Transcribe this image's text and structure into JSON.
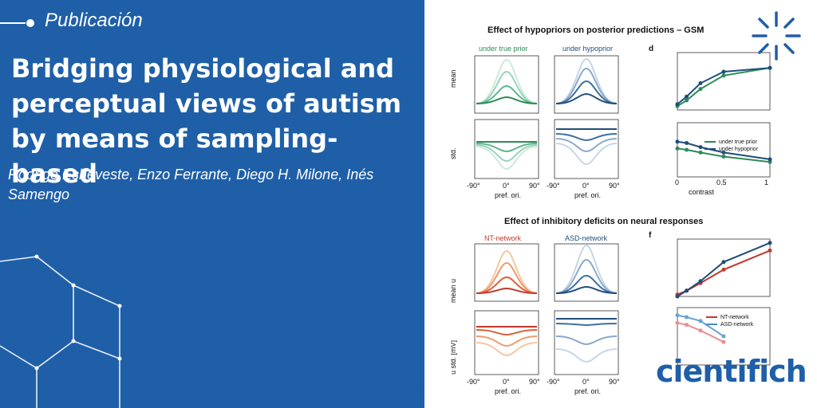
{
  "tag": {
    "label": "Publicación"
  },
  "title": "Bridging physiological and perceptual views of autism by means of sampling-based",
  "authors": "Rodrigo Echeveste, Enzo Ferrante, Diego H. Milone, Inés Samengo",
  "brand": "cientifich",
  "colors": {
    "brand_blue": "#1f5fa8",
    "green": "#2e8b57",
    "blue": "#1f4e79",
    "red": "#c0392b"
  },
  "figure": {
    "top_title": "Effect of hypopriors on posterior predictions – GSM",
    "bottom_title": "Effect of inhibitory deficits on neural responses",
    "panel_a_title": "under true prior",
    "panel_b_title": "under hypoprior",
    "panel_e1_title": "NT-network",
    "panel_e2_title": "ASD-network",
    "letter_d": "d",
    "letter_f": "f",
    "ylabel_mean": "mean",
    "ylabel_std": "std.",
    "ylabel_mean_u": "mean u",
    "ylabel_std_u": "u std. [mV]",
    "xlabel_pref": "pref. ori.",
    "xlabel_contrast": "contrast",
    "xticks": [
      "-90°",
      "0°",
      "90°"
    ],
    "contrast_ticks": [
      "0",
      "0.5",
      "1"
    ],
    "legend_d": [
      "under true prior",
      "under hypoprior"
    ],
    "legend_f": [
      "NT-network",
      "ASD-network"
    ]
  },
  "chart_data": [
    {
      "type": "line",
      "title": "Effect of hypopriors on posterior predictions – GSM",
      "xlabel": "contrast",
      "ylabel": "mean",
      "x": [
        0,
        0.1,
        0.25,
        0.5,
        1
      ],
      "ylim": [
        3,
        6
      ],
      "series": [
        {
          "name": "under true prior",
          "values": [
            3.2,
            3.5,
            4.1,
            4.8,
            5.2
          ]
        },
        {
          "name": "under hypoprior",
          "values": [
            3.3,
            3.7,
            4.4,
            5.0,
            5.2
          ]
        }
      ]
    },
    {
      "type": "line",
      "xlabel": "contrast",
      "ylabel": "std.",
      "x": [
        0,
        0.1,
        0.25,
        0.5,
        1
      ],
      "ylim": [
        0,
        4
      ],
      "series": [
        {
          "name": "under true prior",
          "values": [
            2.1,
            2.0,
            1.8,
            1.5,
            1.1
          ]
        },
        {
          "name": "under hypoprior",
          "values": [
            2.6,
            2.5,
            2.2,
            1.8,
            1.3
          ]
        }
      ]
    },
    {
      "type": "line",
      "title": "Effect of inhibitory deficits on neural responses",
      "ylabel": "mean u [mV]",
      "x": [
        0,
        0.1,
        0.25,
        0.5,
        1
      ],
      "ylim": [
        3,
        6
      ],
      "series": [
        {
          "name": "NT-network",
          "values": [
            3.1,
            3.3,
            3.7,
            4.4,
            5.4
          ]
        },
        {
          "name": "ASD-network",
          "values": [
            3.0,
            3.3,
            3.8,
            4.8,
            5.8
          ]
        }
      ]
    },
    {
      "type": "line",
      "ylabel": "u std. [mV]",
      "x": [
        0,
        0.1,
        0.25,
        0.5
      ],
      "ylim": [
        0,
        3
      ],
      "series": [
        {
          "name": "NT-network",
          "values": [
            2.2,
            2.1,
            1.8,
            1.2
          ]
        },
        {
          "name": "ASD-network",
          "values": [
            2.6,
            2.5,
            2.3,
            1.5
          ]
        }
      ]
    }
  ]
}
